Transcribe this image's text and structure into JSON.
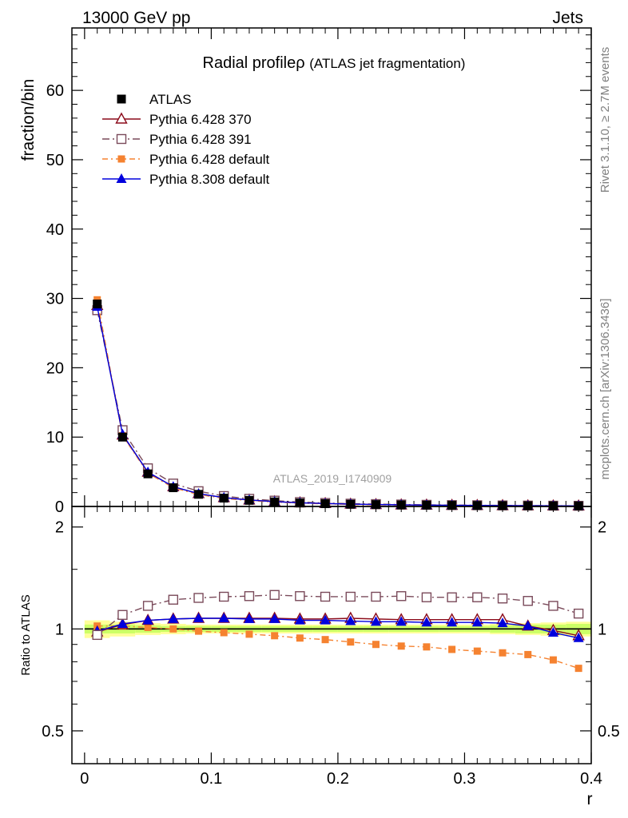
{
  "header": {
    "left": "13000 GeV pp",
    "right": "Jets"
  },
  "side_labels": {
    "rivet": "Rivet 3.1.10, ≥ 2.7M events",
    "mcplots": "mcplots.cern.ch [arXiv:1306.3436]"
  },
  "chart_data": [
    {
      "type": "line",
      "title": "Radial profile",
      "title_symbol": "ρ",
      "subtitle": "(ATLAS jet fragmentation)",
      "watermark": "ATLAS_2019_I1740909",
      "ylabel": "fraction/bin",
      "xlim": [
        -0.01,
        0.4
      ],
      "ylim": [
        0,
        69
      ],
      "yticks": [
        0,
        10,
        20,
        30,
        40,
        50,
        60
      ],
      "legend_position": "top-left",
      "x": [
        0.01,
        0.03,
        0.05,
        0.07,
        0.09,
        0.11,
        0.13,
        0.15,
        0.17,
        0.19,
        0.21,
        0.23,
        0.25,
        0.27,
        0.29,
        0.31,
        0.33,
        0.35,
        0.37,
        0.39
      ],
      "series": [
        {
          "name": "ATLAS",
          "color": "#000000",
          "style": "data-square",
          "values": [
            29.2,
            10.0,
            4.7,
            2.7,
            1.75,
            1.2,
            0.88,
            0.66,
            0.5,
            0.4,
            0.32,
            0.27,
            0.22,
            0.19,
            0.16,
            0.14,
            0.12,
            0.11,
            0.095,
            0.085
          ]
        },
        {
          "name": "Pythia 6.428 370",
          "color": "#8b0a1a",
          "style": "open-triangle",
          "values": [
            29.0,
            10.3,
            4.95,
            2.85,
            1.85,
            1.27,
            0.93,
            0.7,
            0.53,
            0.42,
            0.34,
            0.28,
            0.23,
            0.2,
            0.17,
            0.15,
            0.13,
            0.11,
            0.095,
            0.081
          ]
        },
        {
          "name": "Pythia 6.428 391",
          "color": "#7a4a5a",
          "style": "open-square",
          "values": [
            28.3,
            11.0,
            5.5,
            3.3,
            2.2,
            1.5,
            1.1,
            0.84,
            0.63,
            0.5,
            0.4,
            0.34,
            0.28,
            0.24,
            0.2,
            0.18,
            0.15,
            0.13,
            0.11,
            0.094
          ]
        },
        {
          "name": "Pythia 6.428 default",
          "color": "#f58230",
          "style": "filled-square",
          "values": [
            29.8,
            10.2,
            4.8,
            2.7,
            1.72,
            1.17,
            0.84,
            0.63,
            0.47,
            0.37,
            0.29,
            0.24,
            0.2,
            0.17,
            0.14,
            0.12,
            0.1,
            0.09,
            0.078,
            0.065
          ]
        },
        {
          "name": "Pythia 8.308 default",
          "color": "#0000dd",
          "style": "filled-triangle",
          "values": [
            28.8,
            10.4,
            4.95,
            2.85,
            1.85,
            1.28,
            0.93,
            0.7,
            0.53,
            0.42,
            0.34,
            0.28,
            0.23,
            0.2,
            0.17,
            0.15,
            0.125,
            0.11,
            0.094,
            0.08
          ]
        }
      ]
    },
    {
      "type": "line",
      "title": "",
      "ylabel": "Ratio to ATLAS",
      "xlabel": "r",
      "xlim": [
        -0.01,
        0.4
      ],
      "ylim": [
        0.4,
        2.3
      ],
      "yscale": "log",
      "yticks": [
        0.5,
        1,
        2
      ],
      "ytick_labels": [
        "0.5",
        "1",
        "2"
      ],
      "xticks": [
        0,
        0.1,
        0.2,
        0.3,
        0.4
      ],
      "xtick_labels": [
        "0",
        "0.1",
        "0.2",
        "0.3",
        "0.4"
      ],
      "reference_line": 1,
      "band_inner_color": "#ccff66",
      "band_outer_color": "#ffff99",
      "band_inner": [
        0.03,
        0.03,
        0.025,
        0.02,
        0.02,
        0.02,
        0.02,
        0.02,
        0.02,
        0.02,
        0.02,
        0.02,
        0.02,
        0.02,
        0.02,
        0.02,
        0.025,
        0.03,
        0.03,
        0.035
      ],
      "band_outer": [
        0.06,
        0.05,
        0.04,
        0.035,
        0.03,
        0.03,
        0.03,
        0.03,
        0.03,
        0.03,
        0.03,
        0.03,
        0.03,
        0.03,
        0.03,
        0.03,
        0.035,
        0.04,
        0.045,
        0.05
      ],
      "x": [
        0.01,
        0.03,
        0.05,
        0.07,
        0.09,
        0.11,
        0.13,
        0.15,
        0.17,
        0.19,
        0.21,
        0.23,
        0.25,
        0.27,
        0.29,
        0.31,
        0.33,
        0.35,
        0.37,
        0.39
      ],
      "series": [
        {
          "name": "Pythia 6.428 370",
          "color": "#8b0a1a",
          "style": "open-triangle",
          "values": [
            0.98,
            1.03,
            1.06,
            1.07,
            1.075,
            1.075,
            1.075,
            1.075,
            1.07,
            1.07,
            1.075,
            1.07,
            1.065,
            1.065,
            1.065,
            1.065,
            1.065,
            1.02,
            0.99,
            0.955
          ]
        },
        {
          "name": "Pythia 6.428 391",
          "color": "#7a4a5a",
          "style": "open-square",
          "values": [
            0.96,
            1.1,
            1.17,
            1.22,
            1.235,
            1.245,
            1.25,
            1.26,
            1.25,
            1.245,
            1.245,
            1.245,
            1.25,
            1.24,
            1.24,
            1.24,
            1.23,
            1.21,
            1.17,
            1.11
          ]
        },
        {
          "name": "Pythia 6.428 default",
          "color": "#f58230",
          "style": "filled-square",
          "values": [
            1.02,
            1.02,
            1.01,
            1.0,
            0.985,
            0.975,
            0.965,
            0.955,
            0.94,
            0.93,
            0.915,
            0.9,
            0.89,
            0.885,
            0.87,
            0.86,
            0.85,
            0.84,
            0.81,
            0.765
          ]
        },
        {
          "name": "Pythia 8.308 default",
          "color": "#0000dd",
          "style": "filled-triangle",
          "values": [
            0.985,
            1.035,
            1.06,
            1.07,
            1.075,
            1.075,
            1.07,
            1.07,
            1.06,
            1.06,
            1.055,
            1.05,
            1.05,
            1.045,
            1.045,
            1.045,
            1.04,
            1.02,
            0.975,
            0.94
          ]
        }
      ]
    }
  ]
}
